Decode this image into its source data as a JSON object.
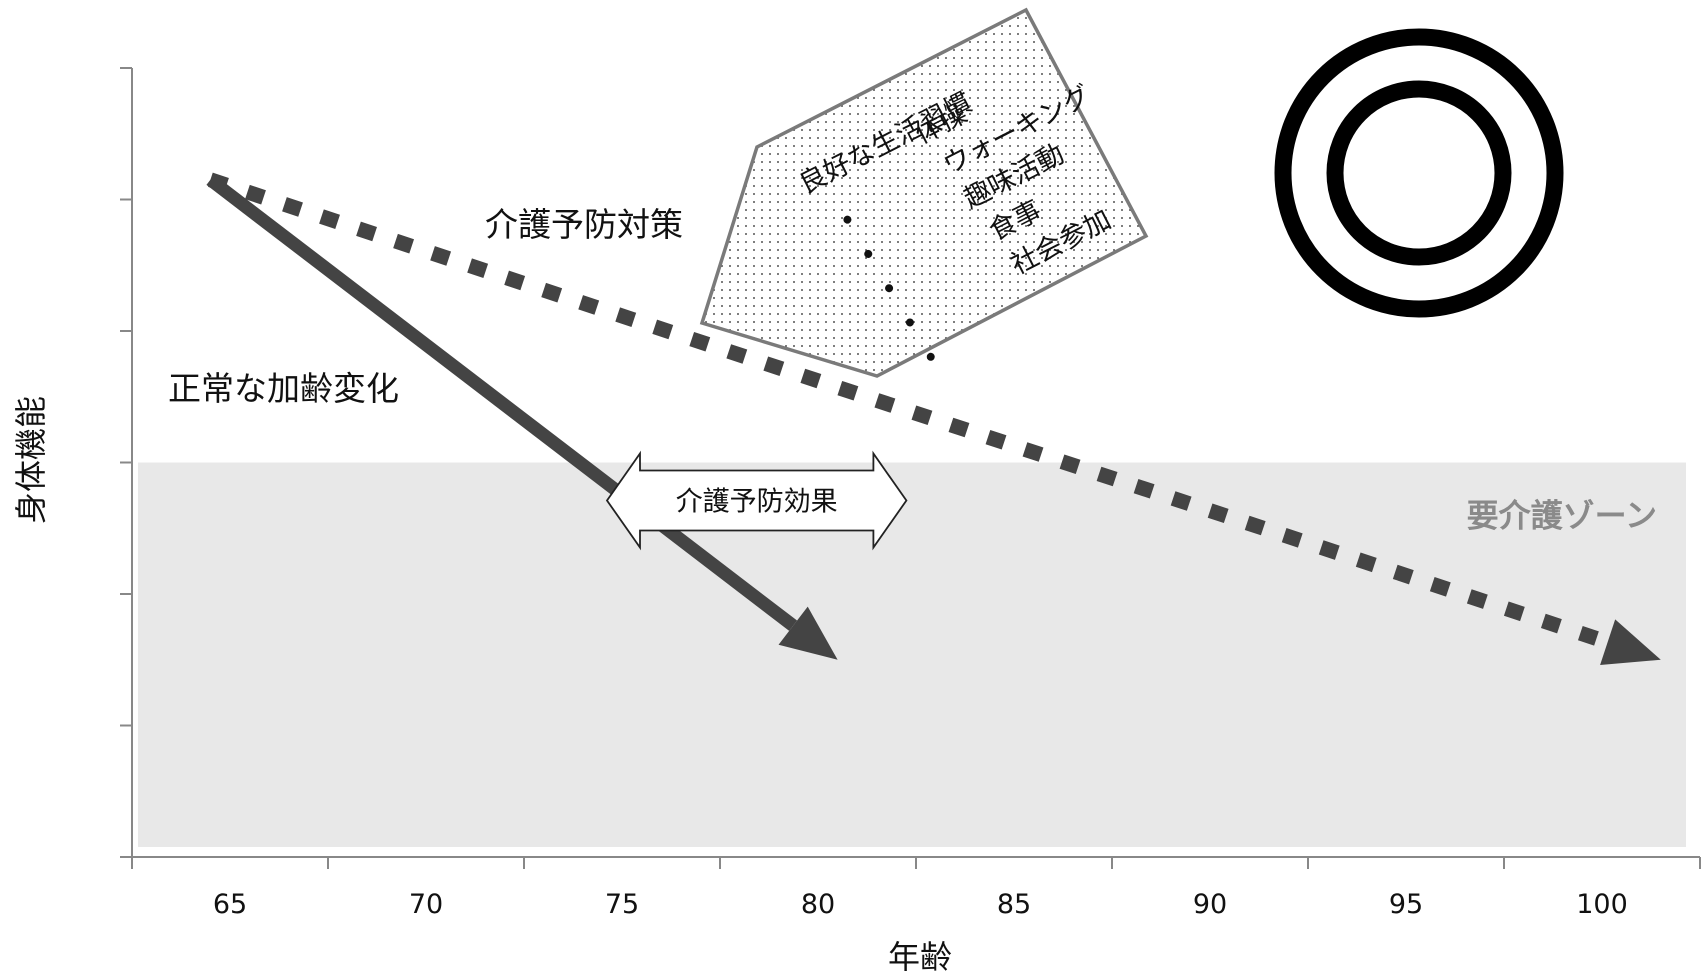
{
  "chart_data": {
    "type": "line",
    "title": "",
    "xlabel": "年齢",
    "ylabel": "身体機能",
    "x_ticks": [
      65,
      70,
      75,
      80,
      85,
      90,
      95,
      100
    ],
    "xlim": [
      62.5,
      102.5
    ],
    "ylim": [
      0,
      6
    ],
    "y_tick_count": 7,
    "grid": false,
    "series": [
      {
        "name": "正常な加齢変化",
        "style": "solid-arrow",
        "color": "#444444",
        "x": [
          64.5,
          80.5
        ],
        "y": [
          5.15,
          1.5
        ]
      },
      {
        "name": "介護予防対策",
        "style": "dashed-arrow",
        "color": "#444444",
        "x": [
          64.5,
          101.5
        ],
        "y": [
          5.15,
          1.5
        ]
      }
    ],
    "regions": [
      {
        "label": "要介護ゾーン",
        "y_from": 0,
        "y_to": 3,
        "x_from": 62.5,
        "x_to": 102.5,
        "color": "#e8e8e8"
      }
    ],
    "effect_arrow": {
      "label": "介護予防効果",
      "x_from": 75,
      "x_to": 82,
      "y": 3
    },
    "measures_box": {
      "title": "良好な生活習慣",
      "items": [
        "体操",
        "ウォーキング",
        "趣味活動",
        "食事",
        "社会参加"
      ]
    },
    "symbol": "double-circle"
  }
}
